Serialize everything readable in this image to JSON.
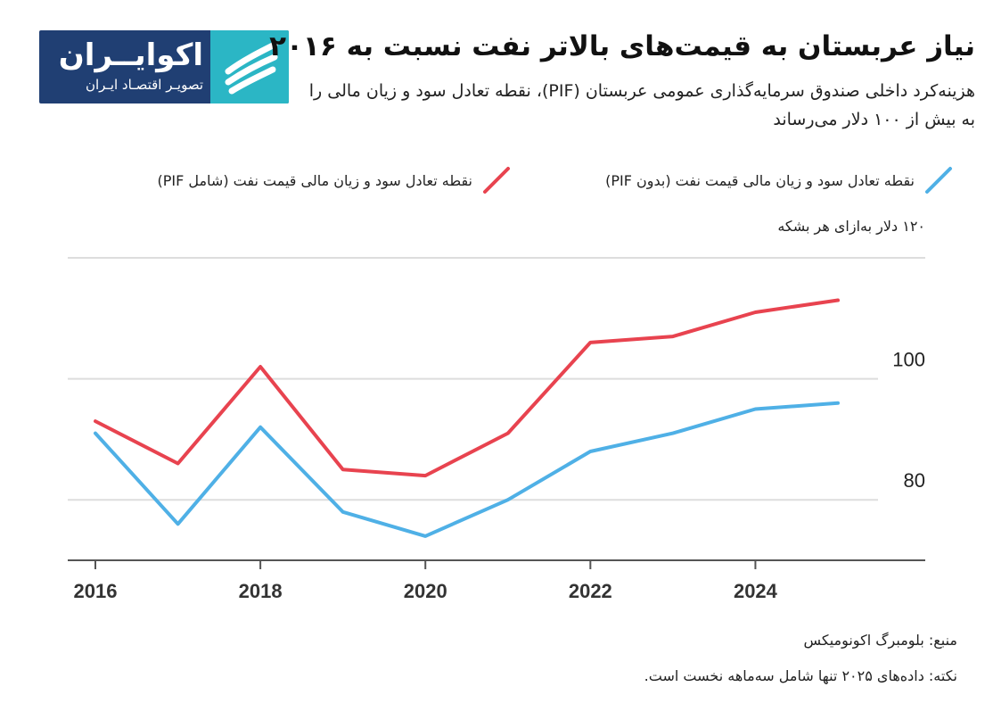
{
  "brand": {
    "name": "اکوایــران",
    "tagline": "تصویـر اقتصـاد ایـران",
    "colors": {
      "dark": "#203f73",
      "accent": "#2bb6c5"
    },
    "mark_icon": "feather-stripes-icon"
  },
  "header": {
    "title": "نیاز عربستان به قیمت‌های بالاتر نفت نسبت به ۲۰۱۶",
    "subtitle": "هزینه‌کرد داخلی صندوق سرمایه‌گذاری عمومی عربستان (PIF)، نقطه تعادل سود و زیان مالی را به بیش از ۱۰۰ دلار می‌رساند"
  },
  "footer": {
    "source": "منبع: بلومبرگ اکونومیکس",
    "note": "نکته: داده‌های ۲۰۲۵ تنها شامل سه‌ماهه نخست است."
  },
  "chart_data": {
    "type": "line",
    "x": [
      2016,
      2017,
      2018,
      2019,
      2020,
      2021,
      2022,
      2023,
      2024,
      2025
    ],
    "series": [
      {
        "name": "نقطه تعادل سود و زیان مالی قیمت نفت (بدون PIF)",
        "color": "#4fb0e6",
        "values": [
          91,
          76,
          92,
          78,
          74,
          80,
          88,
          91,
          95,
          96
        ]
      },
      {
        "name": "نقطه تعادل سود و زیان مالی قیمت نفت (شامل PIF)",
        "color": "#e8434f",
        "values": [
          93,
          86,
          102,
          85,
          84,
          91,
          106,
          107,
          111,
          113
        ]
      }
    ],
    "y_tick_labels": [
      {
        "value": 120,
        "label": "۱۲۰ دلار به‌ازای هر بشکه"
      },
      {
        "value": 100,
        "label": "100"
      },
      {
        "value": 80,
        "label": "80"
      }
    ],
    "x_ticks": [
      2016,
      2018,
      2020,
      2022,
      2024
    ],
    "ylim": [
      70,
      120
    ],
    "grid": true,
    "legend_position": "top-right"
  }
}
